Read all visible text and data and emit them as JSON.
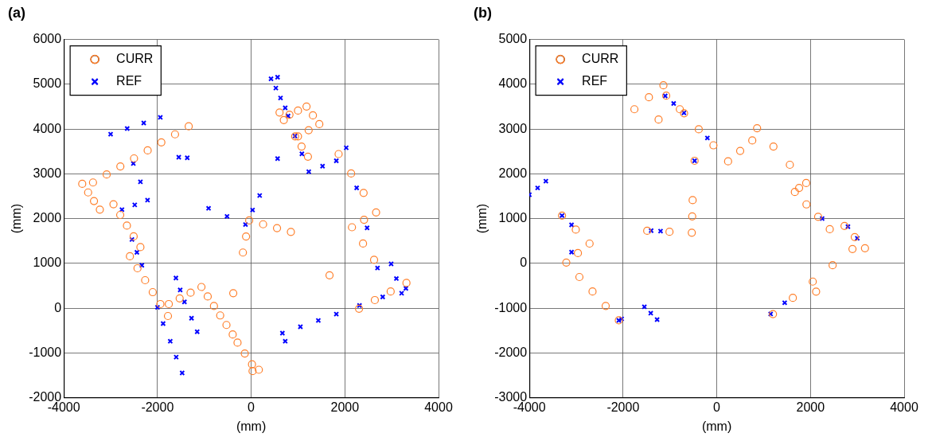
{
  "chart_data": [
    {
      "type": "scatter",
      "title": "(a)",
      "xlabel": "(mm)",
      "ylabel": "(mm)",
      "xlim": [
        -4000,
        4000
      ],
      "ylim": [
        -2000,
        6000
      ],
      "xticks": [
        -4000,
        -2000,
        0,
        2000,
        4000
      ],
      "yticks": [
        -2000,
        -1000,
        0,
        1000,
        2000,
        3000,
        4000,
        5000,
        6000
      ],
      "grid": true,
      "legend": "top left",
      "series": [
        {
          "name": "CURR",
          "color": "#ff7f2a",
          "marker": "circle",
          "x": [
            -3376,
            -3084,
            -2792,
            -2500,
            -2209,
            -1917,
            -1625,
            -1333,
            -3606,
            -3480,
            -3355,
            -3230,
            -2939,
            -2795,
            -2652,
            -2508,
            -2364,
            -2588,
            -2426,
            -2263,
            -2101,
            -1938,
            -1776,
            -1758,
            -1526,
            -1293,
            -1061,
            -927,
            -794,
            -661,
            -527,
            -394,
            -291,
            -136,
            18,
            30,
            164,
            -382,
            -176,
            -109,
            -42,
            255,
            552,
            848,
            606,
            697,
            818,
            1000,
            1182,
            1318,
            1455,
            1227,
            1000,
            939,
            1076,
            1212,
            1867,
            2134,
            2400,
            2667,
            2410,
            2152,
            2388,
            2624,
            1673,
            2303,
            2640,
            2978,
            3315
          ],
          "values": [
            2806,
            2985,
            3165,
            3344,
            3523,
            3703,
            3882,
            4061,
            2776,
            2584,
            2392,
            2200,
            2321,
            2082,
            1843,
            1603,
            1364,
            1158,
            891,
            624,
            357,
            91,
            -176,
            91,
            218,
            346,
            473,
            261,
            48,
            -163,
            -376,
            -588,
            -770,
            -1012,
            -1255,
            -1406,
            -1376,
            333,
            1242,
            1600,
            1958,
            1873,
            1788,
            1703,
            4370,
            4200,
            4321,
            4412,
            4503,
            4306,
            4109,
            3973,
            3836,
            3836,
            3609,
            3382,
            3442,
            3008,
            2573,
            2139,
            1973,
            1806,
            1443,
            1079,
            733,
            -12,
            180,
            372,
            564
          ]
        },
        {
          "name": "REF",
          "color": "#0000ff",
          "marker": "cross",
          "x": [
            -3000,
            -2646,
            -2293,
            -1939,
            -1545,
            -1364,
            -2515,
            -2364,
            -2212,
            -2485,
            -2758,
            -2545,
            -2439,
            -2333,
            -909,
            -515,
            -121,
            30,
            182,
            -1606,
            -1515,
            -1424,
            -2000,
            -1879,
            -1273,
            -1152,
            -1727,
            -1600,
            -1473,
            424,
            564,
            527,
            627,
            727,
            788,
            935,
            1083,
            1230,
            1524,
            1818,
            564,
            2030,
            2252,
            2475,
            2697,
            2988,
            3100,
            3212,
            727,
            667,
            1051,
            1434,
            1818,
            2313,
            2808,
            3303
          ],
          "values": [
            3885,
            4010,
            4136,
            4261,
            3370,
            3358,
            3230,
            2821,
            2412,
            2306,
            2200,
            1533,
            1246,
            958,
            2230,
            2049,
            1867,
            2191,
            2515,
            673,
            406,
            139,
            18,
            -345,
            -224,
            -527,
            -739,
            -1094,
            -1448,
            5121,
            5158,
            4915,
            4694,
            4473,
            4291,
            3843,
            3446,
            3048,
            3170,
            3291,
            3339,
            3582,
            2687,
            1792,
            897,
            988,
            661,
            333,
            -739,
            -558,
            -416,
            -275,
            -133,
            59,
            250,
            442
          ]
        }
      ]
    },
    {
      "type": "scatter",
      "title": "(b)",
      "xlabel": "(mm)",
      "ylabel": "(mm)",
      "xlim": [
        -4000,
        4000
      ],
      "ylim": [
        -3000,
        5000
      ],
      "xticks": [
        -4000,
        -2000,
        0,
        2000,
        4000
      ],
      "yticks": [
        -3000,
        -2000,
        -1000,
        0,
        1000,
        2000,
        3000,
        4000,
        5000
      ],
      "grid": true,
      "legend": "top left",
      "series": [
        {
          "name": "CURR",
          "color": "#ff7f2a",
          "marker": "circle",
          "x": [
            -1758,
            -1448,
            -1139,
            -1242,
            -1079,
            -788,
            -697,
            -384,
            -71,
            242,
            500,
            758,
            -473,
            861,
            1210,
            1560,
            1909,
            1758,
            1667,
            1915,
            2164,
            2412,
            2727,
            2946,
            3164,
            1200,
            1624,
            2049,
            2473,
            2897,
            2121,
            -3303,
            -3009,
            -2715,
            -2964,
            -3212,
            -2932,
            -2652,
            -2371,
            -2091,
            -1485,
            -1009,
            -533,
            -524,
            -515
          ],
          "values": [
            3442,
            3709,
            3976,
            3212,
            3745,
            3442,
            3352,
            2994,
            2637,
            2279,
            2512,
            2745,
            2291,
            3018,
            2610,
            2202,
            1794,
            1685,
            1594,
            1317,
            1041,
            764,
            836,
            588,
            339,
            -1133,
            -770,
            -407,
            -42,
            321,
            -630,
            1067,
            755,
            442,
            230,
            18,
            -305,
            -628,
            -950,
            -1273,
            727,
            706,
            685,
            1049,
            1412
          ]
        },
        {
          "name": "REF",
          "color": "#0000ff",
          "marker": "cross",
          "x": [
            -4000,
            -3824,
            -3648,
            -1545,
            -1409,
            -1273,
            -2091,
            -2030,
            -3303,
            -3100,
            -3100,
            -1100,
            -920,
            -473,
            -1400,
            -1200,
            2800,
            3000,
            1150,
            1450,
            -700,
            -200,
            2250
          ],
          "values": [
            1533,
            1685,
            1836,
            -970,
            -1112,
            -1255,
            -1273,
            -1240,
            1067,
            860,
            250,
            3740,
            3570,
            2291,
            730,
            720,
            820,
            560,
            -1130,
            -880,
            3360,
            2800,
            1000
          ]
        }
      ]
    }
  ]
}
